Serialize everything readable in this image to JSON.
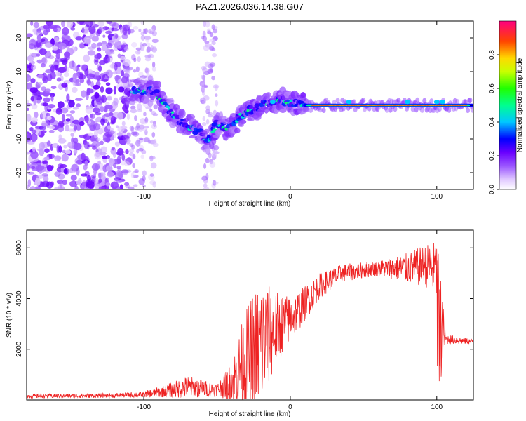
{
  "title": "PAZ1.2026.036.14.38.G07",
  "chart_data": [
    {
      "type": "heatmap",
      "name": "spectrogram",
      "xlabel": "Height of straight line (km)",
      "ylabel": "Frequency (Hz)",
      "xlim": [
        -180,
        125
      ],
      "ylim": [
        -25,
        25
      ],
      "xticks": [
        -100,
        0,
        100
      ],
      "yticks": [
        -20,
        -10,
        0,
        10,
        20
      ],
      "tone_track": [
        {
          "x": -108,
          "y": 4.2
        },
        {
          "x": -100,
          "y": 4.5
        },
        {
          "x": -92,
          "y": 3.8
        },
        {
          "x": -86,
          "y": 0
        },
        {
          "x": -80,
          "y": -3
        },
        {
          "x": -74,
          "y": -5
        },
        {
          "x": -68,
          "y": -6.5
        },
        {
          "x": -62,
          "y": -8
        },
        {
          "x": -56,
          "y": -11
        },
        {
          "x": -50,
          "y": -5
        },
        {
          "x": -44,
          "y": -7
        },
        {
          "x": -38,
          "y": -5
        },
        {
          "x": -30,
          "y": -2
        },
        {
          "x": -24,
          "y": -1
        },
        {
          "x": -20,
          "y": 0
        },
        {
          "x": -14,
          "y": 0.5
        },
        {
          "x": -6,
          "y": 1.5
        },
        {
          "x": 0,
          "y": 1
        },
        {
          "x": 10,
          "y": 0
        },
        {
          "x": 125,
          "y": 0
        }
      ],
      "colorbar": {
        "label": "Normalized spectral amplitude",
        "ticks": [
          0.0,
          0.2,
          0.4,
          0.6,
          0.8
        ],
        "range": [
          0,
          1
        ]
      }
    },
    {
      "type": "line",
      "name": "snr",
      "color": "#ee2222",
      "xlabel": "Height of straight line (km)",
      "ylabel": "SNR (10 * v/v)",
      "xlim": [
        -180,
        125
      ],
      "ylim": [
        0,
        6700
      ],
      "xticks": [
        -100,
        0,
        100
      ],
      "yticks": [
        2000,
        4000,
        6000
      ],
      "envelope": [
        {
          "x": -180,
          "y": 150,
          "noise": 80
        },
        {
          "x": -120,
          "y": 180,
          "noise": 90
        },
        {
          "x": -100,
          "y": 220,
          "noise": 120
        },
        {
          "x": -85,
          "y": 350,
          "noise": 250
        },
        {
          "x": -70,
          "y": 500,
          "noise": 450
        },
        {
          "x": -60,
          "y": 450,
          "noise": 350
        },
        {
          "x": -50,
          "y": 400,
          "noise": 250
        },
        {
          "x": -40,
          "y": 700,
          "noise": 800
        },
        {
          "x": -32,
          "y": 1500,
          "noise": 1800
        },
        {
          "x": -26,
          "y": 1800,
          "noise": 2400
        },
        {
          "x": -20,
          "y": 2200,
          "noise": 2600
        },
        {
          "x": -10,
          "y": 2800,
          "noise": 1500
        },
        {
          "x": 0,
          "y": 3200,
          "noise": 900
        },
        {
          "x": 10,
          "y": 3800,
          "noise": 700
        },
        {
          "x": 20,
          "y": 4500,
          "noise": 500
        },
        {
          "x": 35,
          "y": 5000,
          "noise": 350
        },
        {
          "x": 60,
          "y": 5200,
          "noise": 300
        },
        {
          "x": 80,
          "y": 5200,
          "noise": 600
        },
        {
          "x": 95,
          "y": 5300,
          "noise": 900
        },
        {
          "x": 100,
          "y": 5100,
          "noise": 1200
        },
        {
          "x": 103,
          "y": 3000,
          "noise": 1800
        },
        {
          "x": 106,
          "y": 2400,
          "noise": 200
        },
        {
          "x": 125,
          "y": 2300,
          "noise": 100
        }
      ]
    }
  ]
}
